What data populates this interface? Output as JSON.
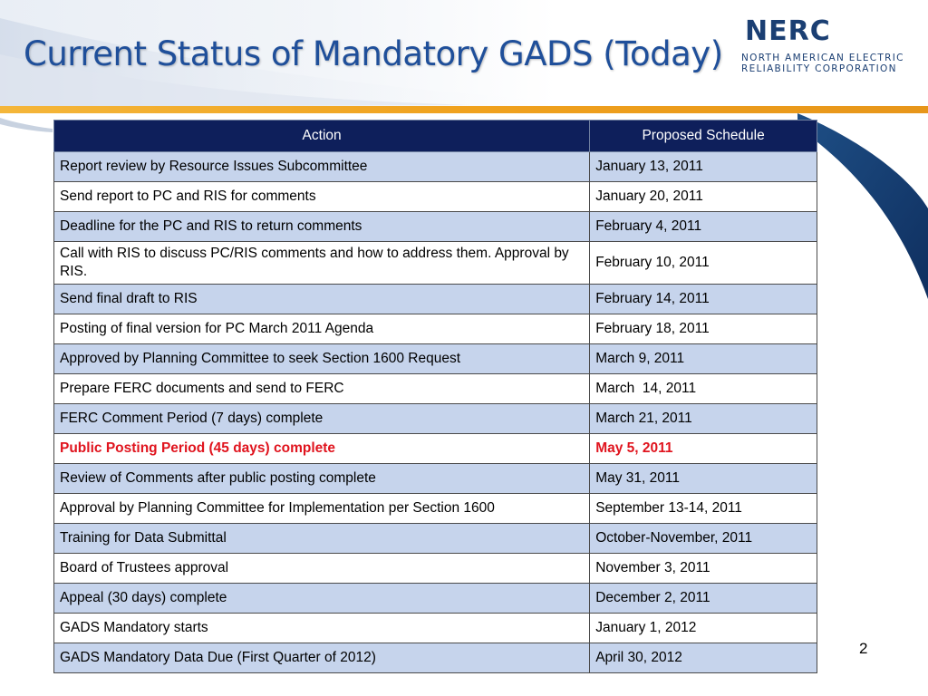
{
  "slide": {
    "title": "Current Status of Mandatory GADS (Today)",
    "page_number": "2"
  },
  "logo": {
    "word": "NERC",
    "line1": "NORTH AMERICAN ELECTRIC",
    "line2": "RELIABILITY CORPORATION"
  },
  "colors": {
    "title_blue": "#1f4f9a",
    "header_navy": "#0e1f5b",
    "row_shade": "#c6d4ec",
    "highlight_red": "#e0141e",
    "gold_accent": "#f0a21e"
  },
  "table": {
    "headers": {
      "action": "Action",
      "schedule": "Proposed Schedule"
    },
    "rows": [
      {
        "action": "Report review by Resource Issues Subcommittee",
        "schedule": "January 13, 2011"
      },
      {
        "action": "Send report to PC and RIS for comments",
        "schedule": "January 20, 2011"
      },
      {
        "action": "Deadline for the PC and RIS to return comments",
        "schedule": "February 4, 2011"
      },
      {
        "action": "Call with RIS to discuss PC/RIS comments and how to address them. Approval by RIS.",
        "schedule": "February 10, 2011"
      },
      {
        "action": "Send final draft to RIS",
        "schedule": "February 14, 2011"
      },
      {
        "action": "Posting of final version for PC March 2011 Agenda",
        "schedule": "February 18, 2011"
      },
      {
        "action": "Approved by Planning Committee to seek Section 1600 Request",
        "schedule": "March 9, 2011"
      },
      {
        "action": "Prepare FERC documents and send to FERC",
        "schedule": "March  14, 2011"
      },
      {
        "action": "FERC Comment Period (7 days) complete",
        "schedule": "March 21, 2011"
      },
      {
        "action": "Public Posting Period (45 days) complete",
        "schedule": "May 5, 2011"
      },
      {
        "action": "Review of Comments after public posting complete",
        "schedule": "May 31, 2011"
      },
      {
        "action": "Approval by Planning Committee for Implementation per Section 1600",
        "schedule": "September 13-14, 2011"
      },
      {
        "action": "Training for Data Submittal",
        "schedule": "October-November, 2011"
      },
      {
        "action": "Board of Trustees approval",
        "schedule": "November 3, 2011"
      },
      {
        "action": "Appeal (30 days) complete",
        "schedule": "December 2, 2011"
      },
      {
        "action": "GADS Mandatory starts",
        "schedule": "January 1, 2012"
      },
      {
        "action": "GADS Mandatory Data Due (First Quarter of 2012)",
        "schedule": "April 30, 2012"
      }
    ]
  }
}
